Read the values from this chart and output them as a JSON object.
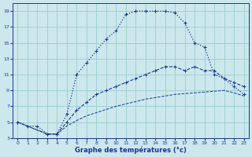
{
  "xlabel": "Graphe des températures (°c)",
  "bg_color": "#cce8ec",
  "grid_color": "#99cccc",
  "line_color": "#1a3399",
  "xlim": [
    -0.5,
    23.5
  ],
  "ylim": [
    3,
    20
  ],
  "xticks": [
    0,
    1,
    2,
    3,
    4,
    5,
    6,
    7,
    8,
    9,
    10,
    11,
    12,
    13,
    14,
    15,
    16,
    17,
    18,
    19,
    20,
    21,
    22,
    23
  ],
  "yticks": [
    3,
    5,
    7,
    9,
    11,
    13,
    15,
    17,
    19
  ],
  "line1_x": [
    0,
    1,
    2,
    3,
    4,
    5,
    6,
    7,
    8,
    9,
    10,
    11,
    12,
    13,
    14,
    15,
    16,
    17,
    18,
    19,
    20,
    21,
    22,
    23
  ],
  "line1_y": [
    5.0,
    4.5,
    4.5,
    3.5,
    3.5,
    6.0,
    11.0,
    12.5,
    14.0,
    15.5,
    16.5,
    18.6,
    19.0,
    19.0,
    19.0,
    19.0,
    18.8,
    17.5,
    15.0,
    14.5,
    11.0,
    10.5,
    9.5,
    8.5
  ],
  "line2_x": [
    0,
    3,
    4,
    5,
    6,
    7,
    8,
    9,
    10,
    11,
    12,
    13,
    14,
    15,
    16,
    17,
    18,
    19,
    20,
    21,
    22,
    23
  ],
  "line2_y": [
    5.0,
    3.5,
    3.5,
    5.0,
    6.5,
    7.5,
    8.5,
    9.0,
    9.5,
    10.0,
    10.5,
    11.0,
    11.5,
    12.0,
    12.0,
    11.5,
    12.0,
    11.5,
    11.5,
    10.5,
    10.0,
    9.5
  ],
  "line3_x": [
    0,
    3,
    4,
    5,
    6,
    7,
    8,
    9,
    10,
    11,
    12,
    13,
    14,
    15,
    16,
    17,
    18,
    19,
    20,
    21,
    22,
    23
  ],
  "line3_y": [
    5.0,
    3.5,
    3.5,
    4.5,
    5.2,
    5.8,
    6.2,
    6.6,
    7.0,
    7.3,
    7.6,
    7.9,
    8.1,
    8.3,
    8.5,
    8.6,
    8.7,
    8.8,
    8.9,
    9.0,
    8.7,
    8.3
  ]
}
